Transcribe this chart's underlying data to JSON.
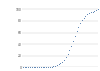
{
  "title": "",
  "ylabel": "",
  "xlabel": "",
  "ylim": [
    0,
    1100000
  ],
  "xlim": [
    -0.5,
    42
  ],
  "y_ticks": [
    0,
    200000,
    400000,
    600000,
    800000,
    1000000
  ],
  "y_tick_labels": [
    "0",
    "20",
    "40",
    "60",
    "80",
    "100"
  ],
  "line_color": "#4472a8",
  "background_color": "#ffffff",
  "grid_color": "#d0d0d0",
  "data_points": [
    100,
    150,
    200,
    250,
    300,
    350,
    400,
    500,
    600,
    800,
    1000,
    1500,
    2500,
    4000,
    6000,
    9000,
    14000,
    20000,
    28000,
    38000,
    52000,
    70000,
    95000,
    130000,
    175000,
    230000,
    295000,
    370000,
    450000,
    535000,
    620000,
    700000,
    760000,
    810000,
    850000,
    885000,
    912000,
    933000,
    950000,
    963000,
    974000,
    985000,
    1000000
  ]
}
